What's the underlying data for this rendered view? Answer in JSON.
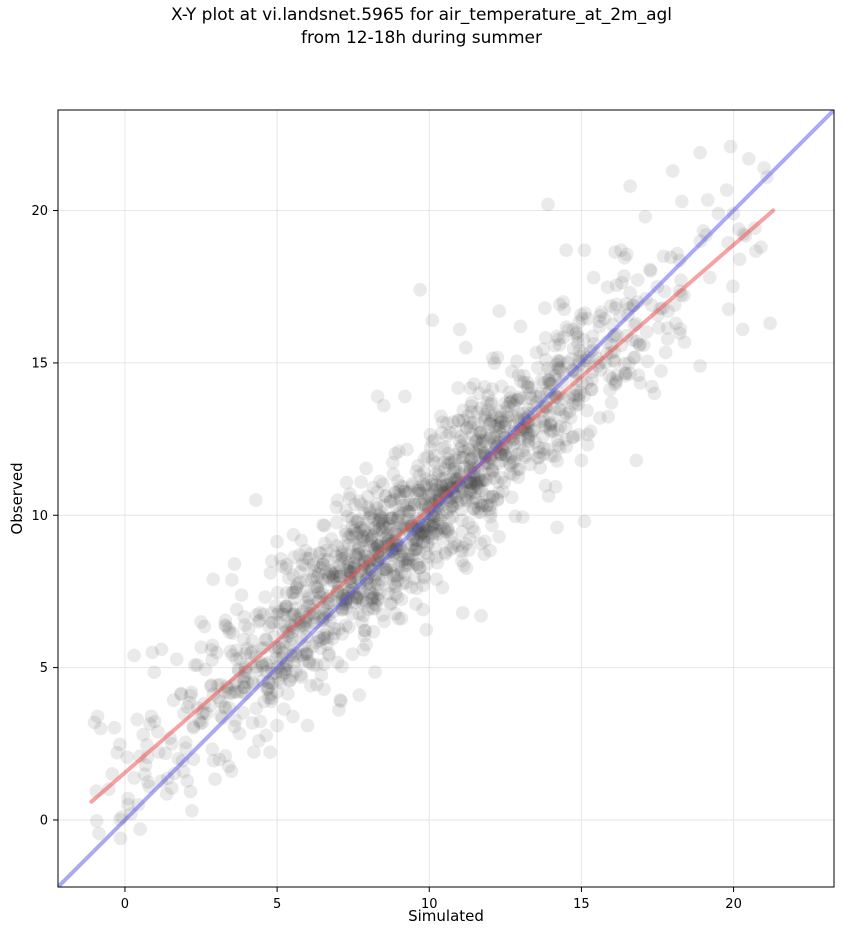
{
  "chart_data": {
    "type": "scatter",
    "title": "X-Y plot at vi.landsnet.5965 for air_temperature_at_2m_agl",
    "subtitle": "from 12-18h during summer",
    "xlabel": "Simulated",
    "ylabel": "Observed",
    "xlim": [
      -2.2,
      23.3
    ],
    "ylim": [
      -2.2,
      23.3
    ],
    "x_ticks": [
      0,
      5,
      10,
      15,
      20
    ],
    "y_ticks": [
      0,
      5,
      10,
      15,
      20
    ],
    "grid": true,
    "points_color": "#333333",
    "fit_line": {
      "color": "#ee5555",
      "x": [
        -1.1,
        21.3
      ],
      "y": [
        0.6,
        20.0
      ]
    },
    "identity_line": {
      "color": "#5555ee",
      "x": [
        -2.2,
        23.3
      ],
      "y": [
        -2.2,
        23.3
      ]
    },
    "sample_points": [
      [
        -0.9,
        3.4
      ],
      [
        -1.0,
        3.2
      ],
      [
        -0.8,
        3.0
      ],
      [
        -0.1,
        0.1
      ],
      [
        0.1,
        0.5
      ],
      [
        0.3,
        5.4
      ],
      [
        0.6,
        2.8
      ],
      [
        0.9,
        5.5
      ],
      [
        1.2,
        5.6
      ],
      [
        0.4,
        3.3
      ],
      [
        0.2,
        0.2
      ],
      [
        0.5,
        -0.3
      ],
      [
        0.8,
        1.1
      ],
      [
        2.2,
        0.3
      ],
      [
        2.5,
        6.5
      ],
      [
        2.9,
        7.9
      ],
      [
        3.3,
        2.1
      ],
      [
        3.5,
        1.6
      ],
      [
        3.6,
        8.4
      ],
      [
        4.3,
        10.5
      ],
      [
        4.4,
        2.6
      ],
      [
        5.0,
        3.1
      ],
      [
        6.0,
        3.1
      ],
      [
        5.0,
        4.2
      ],
      [
        7.1,
        3.9
      ],
      [
        7.7,
        4.1
      ],
      [
        8.3,
        13.9
      ],
      [
        8.5,
        13.6
      ],
      [
        9.2,
        13.9
      ],
      [
        9.0,
        12.1
      ],
      [
        9.7,
        17.4
      ],
      [
        10.1,
        16.4
      ],
      [
        11.0,
        16.1
      ],
      [
        11.2,
        15.5
      ],
      [
        11.7,
        6.7
      ],
      [
        11.1,
        6.8
      ],
      [
        12.3,
        16.7
      ],
      [
        13.0,
        16.2
      ],
      [
        13.8,
        16.8
      ],
      [
        13.9,
        20.2
      ],
      [
        14.4,
        17.0
      ],
      [
        14.5,
        18.7
      ],
      [
        15.1,
        18.7
      ],
      [
        15.4,
        17.8
      ],
      [
        15.1,
        9.8
      ],
      [
        14.2,
        9.6
      ],
      [
        15.0,
        11.8
      ],
      [
        16.3,
        18.7
      ],
      [
        16.6,
        20.8
      ],
      [
        16.6,
        17.3
      ],
      [
        16.8,
        11.8
      ],
      [
        17.4,
        14.0
      ],
      [
        17.1,
        19.8
      ],
      [
        17.7,
        18.5
      ],
      [
        18.0,
        21.3
      ],
      [
        18.1,
        16.3
      ],
      [
        18.3,
        20.3
      ],
      [
        18.9,
        21.9
      ],
      [
        18.9,
        14.9
      ],
      [
        19.1,
        19.2
      ],
      [
        19.9,
        22.1
      ],
      [
        20.0,
        19.9
      ],
      [
        20.2,
        18.4
      ],
      [
        20.5,
        21.7
      ],
      [
        20.3,
        16.1
      ],
      [
        21.0,
        21.4
      ],
      [
        20.9,
        18.8
      ],
      [
        21.2,
        16.3
      ],
      [
        21.1,
        21.1
      ],
      [
        19.5,
        19.9
      ]
    ]
  }
}
